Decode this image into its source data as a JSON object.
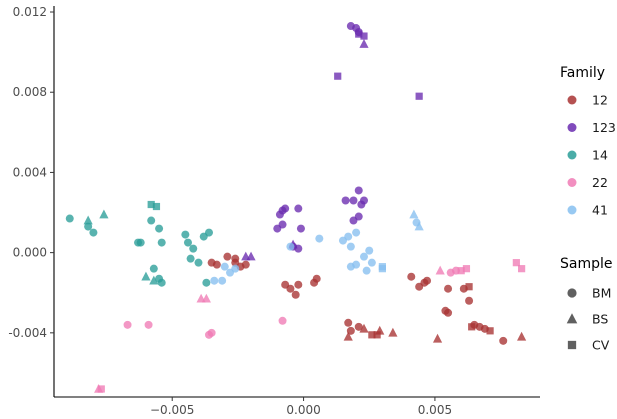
{
  "chart_data": {
    "type": "scatter",
    "title": "",
    "xlabel": "",
    "ylabel": "",
    "xlim": [
      -0.0095,
      0.009
    ],
    "ylim": [
      -0.0072,
      0.0123
    ],
    "x_ticks": [
      {
        "value": -0.005,
        "label": "−0.005"
      },
      {
        "value": 0.0,
        "label": "0.000"
      },
      {
        "value": 0.005,
        "label": "0.005"
      }
    ],
    "y_ticks": [
      {
        "value": -0.004,
        "label": "-0.004"
      },
      {
        "value": 0.0,
        "label": "0.000"
      },
      {
        "value": 0.004,
        "label": "0.004"
      },
      {
        "value": 0.008,
        "label": "0.008"
      },
      {
        "value": 0.012,
        "label": "0.012"
      }
    ],
    "grid": false,
    "legend_position": "right",
    "legends": {
      "color": {
        "title": "Family",
        "entries": [
          {
            "label": "12",
            "color": "#a83232"
          },
          {
            "label": "123",
            "color": "#6a2bb0"
          },
          {
            "label": "14",
            "color": "#2a9d98"
          },
          {
            "label": "22",
            "color": "#f07bb5"
          },
          {
            "label": "41",
            "color": "#86bff0"
          }
        ]
      },
      "shape": {
        "title": "Sample",
        "entries": [
          {
            "label": "BM",
            "shape": "circle"
          },
          {
            "label": "BS",
            "shape": "triangle"
          },
          {
            "label": "CV",
            "shape": "square"
          }
        ]
      }
    },
    "series": [
      {
        "family": "12",
        "color": "#a83232",
        "points": [
          {
            "x": -0.0029,
            "y": -0.0002,
            "s": "circle"
          },
          {
            "x": -0.0026,
            "y": -0.0005,
            "s": "circle"
          },
          {
            "x": -0.0024,
            "y": -0.0007,
            "s": "circle"
          },
          {
            "x": -0.0022,
            "y": -0.0006,
            "s": "circle"
          },
          {
            "x": -0.0026,
            "y": -0.0003,
            "s": "circle"
          },
          {
            "x": -0.0035,
            "y": -0.0005,
            "s": "circle"
          },
          {
            "x": -0.0033,
            "y": -0.0006,
            "s": "circle"
          },
          {
            "x": -0.0007,
            "y": -0.0016,
            "s": "circle"
          },
          {
            "x": -0.0005,
            "y": -0.0018,
            "s": "circle"
          },
          {
            "x": -0.0002,
            "y": -0.0016,
            "s": "circle"
          },
          {
            "x": 0.0004,
            "y": -0.0015,
            "s": "circle"
          },
          {
            "x": 0.0005,
            "y": -0.0013,
            "s": "circle"
          },
          {
            "x": -0.0003,
            "y": -0.0021,
            "s": "circle"
          },
          {
            "x": 0.0017,
            "y": -0.0035,
            "s": "circle"
          },
          {
            "x": 0.0018,
            "y": -0.0039,
            "s": "circle"
          },
          {
            "x": 0.0021,
            "y": -0.0037,
            "s": "circle"
          },
          {
            "x": 0.0041,
            "y": -0.0012,
            "s": "circle"
          },
          {
            "x": 0.0046,
            "y": -0.0015,
            "s": "circle"
          },
          {
            "x": 0.0047,
            "y": -0.0014,
            "s": "circle"
          },
          {
            "x": 0.0044,
            "y": -0.0017,
            "s": "circle"
          },
          {
            "x": 0.0054,
            "y": -0.0029,
            "s": "circle"
          },
          {
            "x": 0.0055,
            "y": -0.003,
            "s": "circle"
          },
          {
            "x": 0.0055,
            "y": -0.0018,
            "s": "circle"
          },
          {
            "x": 0.0061,
            "y": -0.0018,
            "s": "circle"
          },
          {
            "x": 0.0063,
            "y": -0.0024,
            "s": "circle"
          },
          {
            "x": 0.0065,
            "y": -0.0036,
            "s": "circle"
          },
          {
            "x": 0.0067,
            "y": -0.0037,
            "s": "circle"
          },
          {
            "x": 0.0069,
            "y": -0.0038,
            "s": "circle"
          },
          {
            "x": 0.0076,
            "y": -0.0044,
            "s": "circle"
          },
          {
            "x": 0.0017,
            "y": -0.0042,
            "s": "triangle"
          },
          {
            "x": 0.0023,
            "y": -0.0038,
            "s": "triangle"
          },
          {
            "x": 0.0029,
            "y": -0.0039,
            "s": "triangle"
          },
          {
            "x": 0.0034,
            "y": -0.004,
            "s": "triangle"
          },
          {
            "x": 0.0051,
            "y": -0.0043,
            "s": "triangle"
          },
          {
            "x": 0.0083,
            "y": -0.0042,
            "s": "triangle"
          },
          {
            "x": 0.0026,
            "y": -0.0041,
            "s": "square"
          },
          {
            "x": 0.0028,
            "y": -0.0041,
            "s": "square"
          },
          {
            "x": 0.0063,
            "y": -0.0017,
            "s": "square"
          },
          {
            "x": 0.0064,
            "y": -0.0037,
            "s": "square"
          },
          {
            "x": 0.0071,
            "y": -0.0039,
            "s": "square"
          }
        ]
      },
      {
        "family": "123",
        "color": "#6a2bb0",
        "points": [
          {
            "x": 0.0018,
            "y": 0.0113,
            "s": "circle"
          },
          {
            "x": 0.002,
            "y": 0.0112,
            "s": "circle"
          },
          {
            "x": 0.0021,
            "y": 0.011,
            "s": "circle"
          },
          {
            "x": 0.0019,
            "y": 0.0026,
            "s": "circle"
          },
          {
            "x": 0.0022,
            "y": 0.0024,
            "s": "circle"
          },
          {
            "x": 0.0021,
            "y": 0.0031,
            "s": "circle"
          },
          {
            "x": 0.0023,
            "y": 0.0026,
            "s": "circle"
          },
          {
            "x": 0.0016,
            "y": 0.0026,
            "s": "circle"
          },
          {
            "x": 0.0021,
            "y": 0.0018,
            "s": "circle"
          },
          {
            "x": 0.0019,
            "y": 0.0016,
            "s": "circle"
          },
          {
            "x": -0.0007,
            "y": 0.0022,
            "s": "circle"
          },
          {
            "x": -0.0009,
            "y": 0.0019,
            "s": "circle"
          },
          {
            "x": -0.0008,
            "y": 0.0014,
            "s": "circle"
          },
          {
            "x": -0.001,
            "y": 0.0012,
            "s": "circle"
          },
          {
            "x": -0.0002,
            "y": 0.0022,
            "s": "circle"
          },
          {
            "x": -0.0001,
            "y": 0.0012,
            "s": "circle"
          },
          {
            "x": -0.0004,
            "y": 0.0003,
            "s": "circle"
          },
          {
            "x": -0.0002,
            "y": 0.0002,
            "s": "circle"
          },
          {
            "x": -0.0008,
            "y": 0.0021,
            "s": "circle"
          },
          {
            "x": 0.0023,
            "y": 0.0104,
            "s": "triangle"
          },
          {
            "x": -0.0004,
            "y": 0.0004,
            "s": "triangle"
          },
          {
            "x": -0.0022,
            "y": -0.0002,
            "s": "triangle"
          },
          {
            "x": -0.002,
            "y": -0.0002,
            "s": "triangle"
          },
          {
            "x": 0.0021,
            "y": 0.0109,
            "s": "square"
          },
          {
            "x": 0.0023,
            "y": 0.0108,
            "s": "square"
          },
          {
            "x": 0.0013,
            "y": 0.0088,
            "s": "square"
          },
          {
            "x": 0.0044,
            "y": 0.0078,
            "s": "square"
          }
        ]
      },
      {
        "family": "14",
        "color": "#2a9d98",
        "points": [
          {
            "x": -0.0089,
            "y": 0.0017,
            "s": "circle"
          },
          {
            "x": -0.0082,
            "y": 0.0013,
            "s": "circle"
          },
          {
            "x": -0.008,
            "y": 0.001,
            "s": "circle"
          },
          {
            "x": -0.0063,
            "y": 0.0005,
            "s": "circle"
          },
          {
            "x": -0.0062,
            "y": 0.0005,
            "s": "circle"
          },
          {
            "x": -0.0058,
            "y": 0.0016,
            "s": "circle"
          },
          {
            "x": -0.0055,
            "y": 0.0012,
            "s": "circle"
          },
          {
            "x": -0.0054,
            "y": 0.0005,
            "s": "circle"
          },
          {
            "x": -0.0057,
            "y": -0.0008,
            "s": "circle"
          },
          {
            "x": -0.0055,
            "y": -0.0013,
            "s": "circle"
          },
          {
            "x": -0.0054,
            "y": -0.0015,
            "s": "circle"
          },
          {
            "x": -0.0045,
            "y": 0.0009,
            "s": "circle"
          },
          {
            "x": -0.0044,
            "y": 0.0005,
            "s": "circle"
          },
          {
            "x": -0.0043,
            "y": -0.0003,
            "s": "circle"
          },
          {
            "x": -0.0042,
            "y": 0.0002,
            "s": "circle"
          },
          {
            "x": -0.004,
            "y": -0.0005,
            "s": "circle"
          },
          {
            "x": -0.0038,
            "y": 0.0008,
            "s": "circle"
          },
          {
            "x": -0.0036,
            "y": 0.001,
            "s": "circle"
          },
          {
            "x": -0.0037,
            "y": -0.0015,
            "s": "circle"
          },
          {
            "x": -0.0082,
            "y": 0.0016,
            "s": "triangle"
          },
          {
            "x": -0.0076,
            "y": 0.0019,
            "s": "triangle"
          },
          {
            "x": -0.006,
            "y": -0.0012,
            "s": "triangle"
          },
          {
            "x": -0.0057,
            "y": -0.0014,
            "s": "triangle"
          },
          {
            "x": -0.0058,
            "y": 0.0024,
            "s": "square"
          },
          {
            "x": -0.0056,
            "y": 0.0023,
            "s": "square"
          }
        ]
      },
      {
        "family": "22",
        "color": "#f07bb5",
        "points": [
          {
            "x": -0.0067,
            "y": -0.0036,
            "s": "circle"
          },
          {
            "x": -0.0059,
            "y": -0.0036,
            "s": "circle"
          },
          {
            "x": -0.0036,
            "y": -0.0041,
            "s": "circle"
          },
          {
            "x": -0.0035,
            "y": -0.004,
            "s": "circle"
          },
          {
            "x": -0.0008,
            "y": -0.0034,
            "s": "circle"
          },
          {
            "x": 0.0056,
            "y": -0.001,
            "s": "circle"
          },
          {
            "x": 0.0058,
            "y": -0.0009,
            "s": "circle"
          },
          {
            "x": -0.0078,
            "y": -0.0068,
            "s": "triangle"
          },
          {
            "x": -0.0039,
            "y": -0.0023,
            "s": "triangle"
          },
          {
            "x": -0.0037,
            "y": -0.0023,
            "s": "triangle"
          },
          {
            "x": 0.0052,
            "y": -0.0009,
            "s": "triangle"
          },
          {
            "x": -0.0077,
            "y": -0.0068,
            "s": "square"
          },
          {
            "x": 0.006,
            "y": -0.0009,
            "s": "square"
          },
          {
            "x": 0.0062,
            "y": -0.0008,
            "s": "square"
          },
          {
            "x": 0.0081,
            "y": -0.0005,
            "s": "square"
          },
          {
            "x": 0.0083,
            "y": -0.0008,
            "s": "square"
          }
        ]
      },
      {
        "family": "41",
        "color": "#86bff0",
        "points": [
          {
            "x": -0.0034,
            "y": -0.0014,
            "s": "circle"
          },
          {
            "x": -0.0031,
            "y": -0.0014,
            "s": "circle"
          },
          {
            "x": -0.003,
            "y": -0.0007,
            "s": "circle"
          },
          {
            "x": -0.0028,
            "y": -0.001,
            "s": "circle"
          },
          {
            "x": -0.0026,
            "y": -0.0008,
            "s": "circle"
          },
          {
            "x": 0.0006,
            "y": 0.0007,
            "s": "circle"
          },
          {
            "x": 0.0015,
            "y": 0.0006,
            "s": "circle"
          },
          {
            "x": 0.0017,
            "y": 0.0008,
            "s": "circle"
          },
          {
            "x": 0.0018,
            "y": 0.0003,
            "s": "circle"
          },
          {
            "x": 0.002,
            "y": 0.001,
            "s": "circle"
          },
          {
            "x": 0.0023,
            "y": -0.0002,
            "s": "circle"
          },
          {
            "x": 0.0025,
            "y": 0.0001,
            "s": "circle"
          },
          {
            "x": 0.0026,
            "y": -0.0005,
            "s": "circle"
          },
          {
            "x": 0.0018,
            "y": -0.0007,
            "s": "circle"
          },
          {
            "x": 0.002,
            "y": -0.0006,
            "s": "circle"
          },
          {
            "x": 0.0024,
            "y": -0.0009,
            "s": "circle"
          },
          {
            "x": -0.0005,
            "y": 0.0003,
            "s": "circle"
          },
          {
            "x": 0.0043,
            "y": 0.0015,
            "s": "circle"
          },
          {
            "x": 0.0042,
            "y": 0.0019,
            "s": "triangle"
          },
          {
            "x": 0.0044,
            "y": 0.0013,
            "s": "triangle"
          },
          {
            "x": 0.003,
            "y": -0.0007,
            "s": "square"
          },
          {
            "x": 0.003,
            "y": -0.0008,
            "s": "square"
          }
        ]
      }
    ]
  }
}
